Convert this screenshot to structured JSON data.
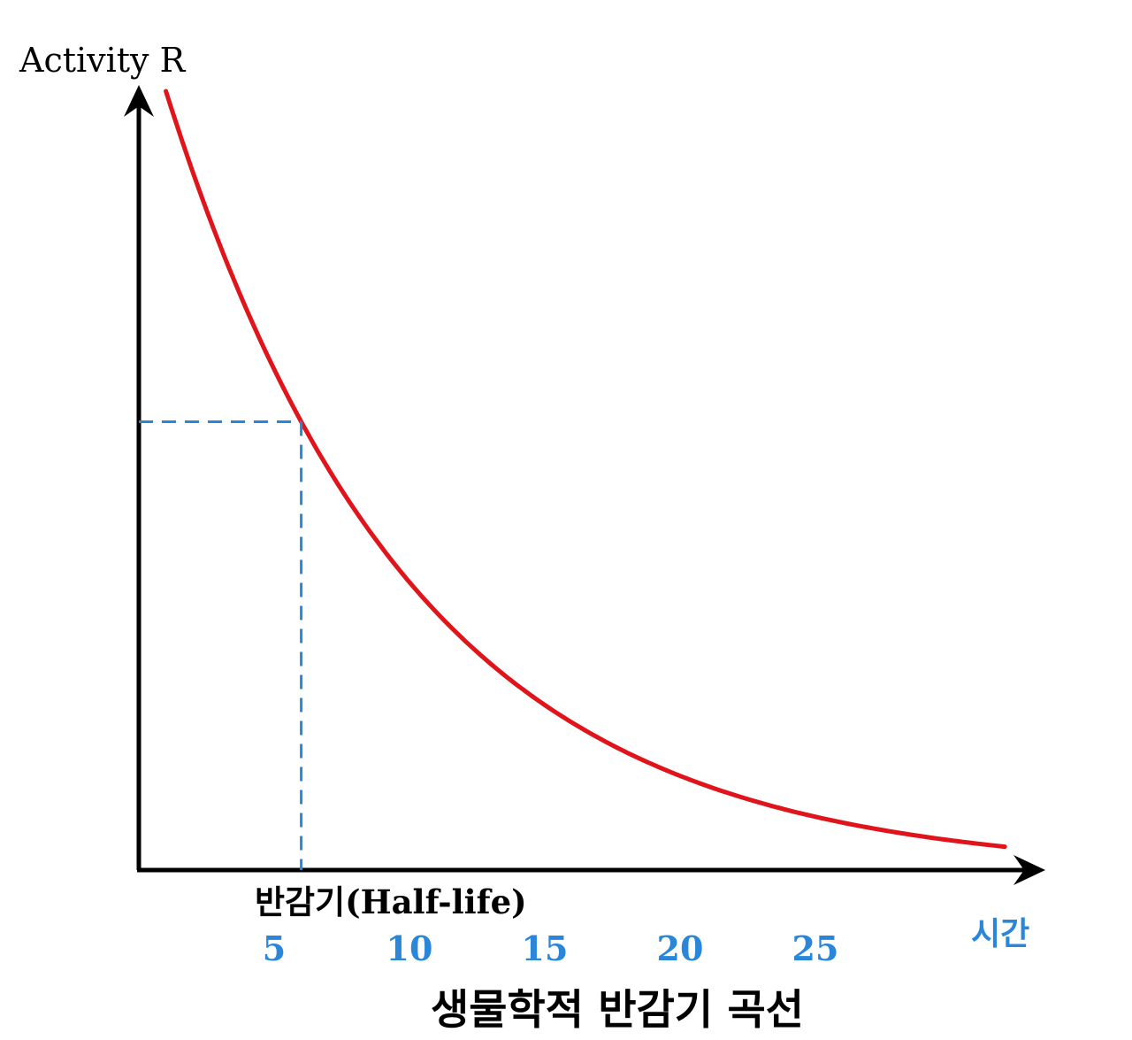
{
  "chart_data": {
    "type": "line",
    "title": "생물학적 반감기 곡선",
    "ylabel": "Activity R",
    "xlabel": "시간",
    "x_ticks": [
      5,
      10,
      15,
      20,
      25
    ],
    "annotation": "반감기(Half-life)",
    "half_life_x": 6,
    "x_range": [
      1,
      32
    ],
    "xlim": [
      0,
      33
    ],
    "y_range_relative": [
      1.0,
      0.03
    ],
    "series": [
      {
        "type": "exponential-decay",
        "decay_rate": 0.11
      }
    ],
    "grid": false,
    "legend": "none",
    "colors": {
      "curve": "#e0141b",
      "guide": "#2a86d8",
      "axis": "#000000",
      "tick_labels": "#2a86d8",
      "x_axis_label": "#2a86d8",
      "text": "#000000"
    }
  }
}
